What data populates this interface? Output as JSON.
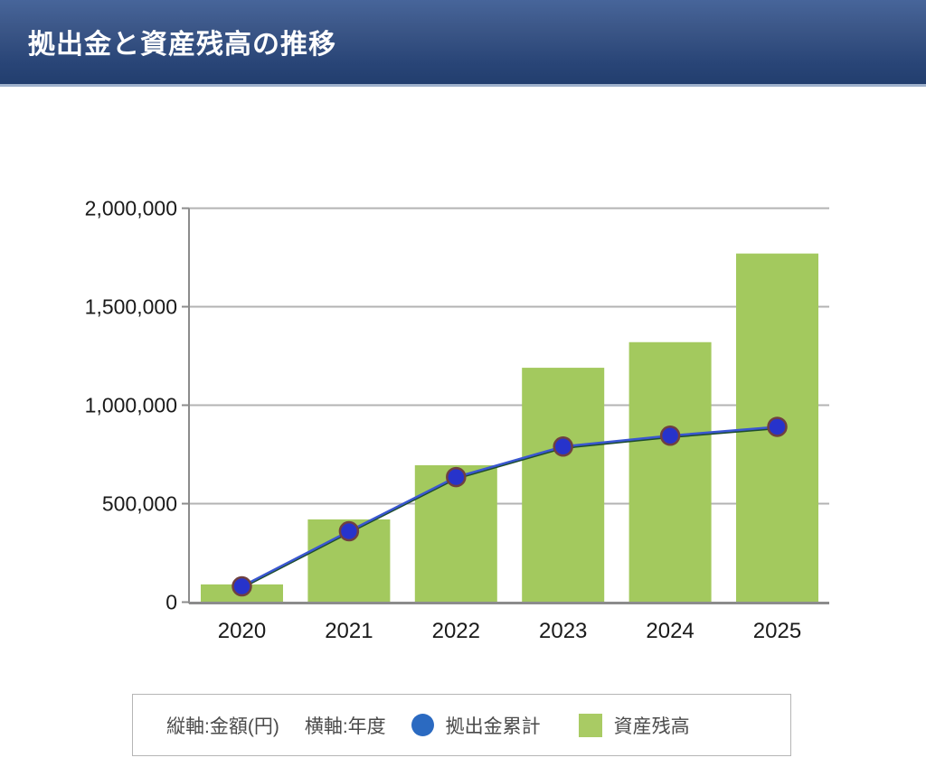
{
  "header": {
    "title": "拠出金と資産残高の推移"
  },
  "legend": {
    "y_axis": "縦軸:金額(円)",
    "x_axis": "横軸:年度",
    "series_line": "拠出金累計",
    "series_bar": "資産残高"
  },
  "chart_data": {
    "type": "bar",
    "title": "拠出金と資産残高の推移",
    "categories": [
      "2020",
      "2021",
      "2022",
      "2023",
      "2024",
      "2025"
    ],
    "series": [
      {
        "name": "資産残高",
        "type": "bar",
        "values": [
          90000,
          420000,
          695000,
          1190000,
          1320000,
          1770000
        ]
      },
      {
        "name": "拠出金累計",
        "type": "line",
        "values": [
          80000,
          360000,
          635000,
          790000,
          845000,
          890000
        ]
      }
    ],
    "xlabel": "年度",
    "ylabel": "金額(円)",
    "ylim": [
      0,
      2000000
    ],
    "yticks": [
      0,
      500000,
      1000000,
      1500000,
      2000000
    ],
    "grid": true,
    "legend_position": "bottom"
  },
  "colors": {
    "bar": "#a3c95e",
    "line": "#3a57d1",
    "line_shadow": "#1e4d2b",
    "point_fill": "#2733cb",
    "point_ring": "#6f4040",
    "legend_dot": "#2b6ac1",
    "legend_square": "#a9cb64",
    "grid": "#b3b3b3",
    "axis": "#8c8c8c",
    "tick_label": "#1a1a1a",
    "header_top": "#47659a",
    "header_bottom": "#223e6e"
  }
}
